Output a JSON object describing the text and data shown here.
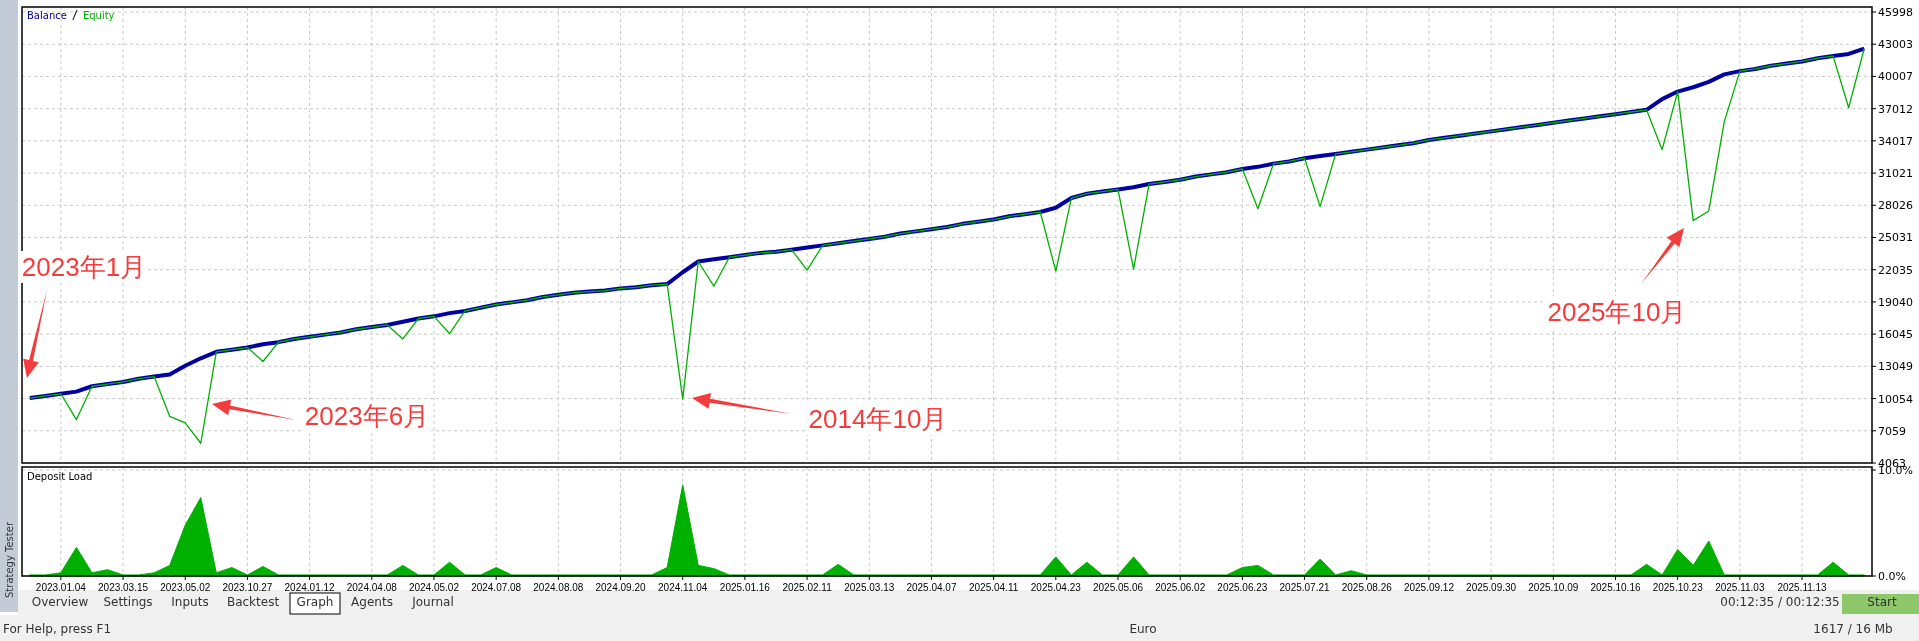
{
  "chart_data": [
    {
      "type": "line",
      "legend": "top left",
      "grid": true,
      "tick_labels": "y",
      "categories": [
        null,
        null,
        "2023.01.04",
        null,
        null,
        null,
        "2023.03.15",
        null,
        null,
        null,
        "2023.05.02",
        null,
        null,
        null,
        "2023.10.27",
        null,
        null,
        null,
        "2024.01.12",
        null,
        null,
        null,
        "2024.04.08",
        null,
        null,
        null,
        "2024.05.02",
        null,
        null,
        null,
        "2024.07.08",
        null,
        null,
        null,
        "2024.08.08",
        null,
        null,
        null,
        "2024.09.20",
        null,
        null,
        null,
        "2024.11.04",
        null,
        null,
        null,
        "2025.01.16",
        null,
        null,
        null,
        "2025.02.11",
        null,
        null,
        null,
        "2025.03.13",
        null,
        null,
        null,
        "2025.04.07",
        null,
        null,
        null,
        "2025.04.11",
        null,
        null,
        null,
        "2025.04.23",
        null,
        null,
        null,
        "2025.05.06",
        null,
        null,
        null,
        "2025.06.02",
        null,
        null,
        null,
        "2025.06.23",
        null,
        null,
        null,
        "2025.07.21",
        null,
        null,
        null,
        "2025.08.26",
        null,
        null,
        null,
        "2025.09.12",
        null,
        null,
        null,
        "2025.09.30",
        null,
        null,
        null,
        "2025.10.09",
        null,
        null,
        null,
        "2025.10.16",
        null,
        null,
        null,
        "2025.10.23",
        null,
        null,
        null,
        "2025.11.03",
        null,
        null,
        null,
        "2025.11.13",
        null,
        null,
        null,
        null
      ],
      "series": [
        {
          "name": "Balance",
          "color": "#0000a0",
          "values": [
            10100,
            10300,
            10500,
            10700,
            11200,
            11400,
            11600,
            11900,
            12100,
            12300,
            13100,
            13800,
            14400,
            14600,
            14800,
            15100,
            15300,
            15600,
            15800,
            16000,
            16200,
            16500,
            16700,
            16900,
            17200,
            17500,
            17700,
            18000,
            18200,
            18500,
            18800,
            19000,
            19200,
            19500,
            19700,
            19900,
            20000,
            20100,
            20300,
            20400,
            20600,
            20700,
            21800,
            22800,
            23000,
            23200,
            23400,
            23600,
            23700,
            23900,
            24100,
            24300,
            24500,
            24700,
            24900,
            25100,
            25400,
            25600,
            25800,
            26000,
            26300,
            26500,
            26700,
            27000,
            27200,
            27400,
            27800,
            28700,
            29100,
            29300,
            29500,
            29700,
            30000,
            30200,
            30400,
            30700,
            30900,
            31100,
            31400,
            31600,
            31900,
            32100,
            32400,
            32600,
            32800,
            33000,
            33200,
            33400,
            33600,
            33800,
            34100,
            34300,
            34500,
            34700,
            34900,
            35100,
            35300,
            35500,
            35700,
            35900,
            36100,
            36300,
            36500,
            36700,
            36900,
            37900,
            38600,
            39000,
            39500,
            40200,
            40500,
            40700,
            41000,
            41200,
            41400,
            41700,
            41900,
            42100,
            42600
          ]
        },
        {
          "name": "Equity",
          "color": "#00b000",
          "values": [
            10100,
            10300,
            10500,
            8100,
            11200,
            11400,
            11600,
            11900,
            12100,
            8400,
            7800,
            5900,
            14400,
            14600,
            14800,
            13500,
            15300,
            15600,
            15800,
            16000,
            16200,
            16500,
            16700,
            16900,
            15600,
            17500,
            17700,
            16100,
            18200,
            18500,
            18800,
            19000,
            19200,
            19500,
            19700,
            19900,
            20000,
            20100,
            20300,
            20400,
            20600,
            20700,
            10000,
            22800,
            20500,
            23200,
            23400,
            23600,
            23700,
            23900,
            22000,
            24300,
            24500,
            24700,
            24900,
            25100,
            25400,
            25600,
            25800,
            26000,
            26300,
            26500,
            26700,
            27000,
            27200,
            27400,
            21900,
            28700,
            29100,
            29300,
            29500,
            22100,
            30000,
            30200,
            30400,
            30700,
            30900,
            31100,
            31400,
            27700,
            31900,
            32100,
            32400,
            27900,
            32800,
            33000,
            33200,
            33400,
            33600,
            33800,
            34100,
            34300,
            34500,
            34700,
            34900,
            35100,
            35300,
            35500,
            35700,
            35900,
            36100,
            36300,
            36500,
            36700,
            36900,
            33200,
            38600,
            26600,
            27500,
            35800,
            40500,
            40700,
            41000,
            41200,
            41400,
            41700,
            41900,
            37100,
            42600
          ]
        }
      ],
      "ylim": [
        4063,
        45998
      ],
      "yticks": [
        4063,
        7059,
        10054,
        13049,
        16045,
        19040,
        22035,
        25031,
        28026,
        31021,
        34017,
        37012,
        40007,
        43003,
        45998
      ],
      "annotations": [
        "2023年1月",
        "2023年6月",
        "2014年10月",
        "2025年10月"
      ]
    },
    {
      "type": "area",
      "title": "Deposit Load",
      "color": "#00b000",
      "grid": true,
      "categories": [
        null,
        null,
        "2023.01.04",
        null,
        null,
        null,
        "2023.03.15",
        null,
        null,
        null,
        "2023.05.02",
        null,
        null,
        null,
        "2023.10.27",
        null,
        null,
        null,
        "2024.01.12",
        null,
        null,
        null,
        "2024.04.08",
        null,
        null,
        null,
        "2024.05.02",
        null,
        null,
        null,
        "2024.07.08",
        null,
        null,
        null,
        "2024.08.08",
        null,
        null,
        null,
        "2024.09.20",
        null,
        null,
        null,
        "2024.11.04",
        null,
        null,
        null,
        "2025.01.16",
        null,
        null,
        null,
        "2025.02.11",
        null,
        null,
        null,
        "2025.03.13",
        null,
        null,
        null,
        "2025.04.07",
        null,
        null,
        null,
        "2025.04.11",
        null,
        null,
        null,
        "2025.04.23",
        null,
        null,
        null,
        "2025.05.06",
        null,
        null,
        null,
        "2025.06.02",
        null,
        null,
        null,
        "2025.06.23",
        null,
        null,
        null,
        "2025.07.21",
        null,
        null,
        null,
        "2025.08.26",
        null,
        null,
        null,
        "2025.09.12",
        null,
        null,
        null,
        "2025.09.30",
        null,
        null,
        null,
        "2025.10.09",
        null,
        null,
        null,
        "2025.10.16",
        null,
        null,
        null,
        "2025.10.23",
        null,
        null,
        null,
        "2025.11.03",
        null,
        null,
        null,
        "2025.11.13",
        null,
        null,
        null,
        null
      ],
      "values": [
        0.1,
        0.1,
        0.3,
        2.7,
        0.3,
        0.6,
        0.1,
        0.1,
        0.3,
        1.0,
        4.8,
        7.4,
        0.3,
        0.8,
        0.1,
        0.9,
        0.1,
        0.1,
        0.1,
        0.1,
        0.1,
        0.1,
        0.1,
        0.1,
        1.0,
        0.1,
        0.1,
        1.3,
        0.1,
        0.1,
        0.8,
        0.1,
        0.1,
        0.1,
        0.1,
        0.1,
        0.1,
        0.1,
        0.1,
        0.1,
        0.1,
        0.8,
        8.6,
        1.0,
        0.7,
        0.1,
        0.1,
        0.1,
        0.1,
        0.1,
        0.1,
        0.1,
        1.1,
        0.1,
        0.1,
        0.1,
        0.1,
        0.1,
        0.1,
        0.1,
        0.1,
        0.1,
        0.1,
        0.1,
        0.1,
        0.1,
        1.8,
        0.1,
        1.3,
        0.1,
        0.1,
        1.8,
        0.1,
        0.1,
        0.1,
        0.1,
        0.1,
        0.1,
        0.8,
        1.0,
        0.1,
        0.1,
        0.1,
        1.6,
        0.1,
        0.5,
        0.1,
        0.1,
        0.1,
        0.1,
        0.1,
        0.1,
        0.1,
        0.1,
        0.1,
        0.1,
        0.1,
        0.1,
        0.1,
        0.1,
        0.1,
        0.1,
        0.1,
        0.1,
        1.1,
        0.1,
        2.5,
        1.0,
        3.3,
        0.1,
        0.1,
        0.1,
        0.1,
        0.1,
        0.1,
        0.1,
        1.3,
        0.1,
        0.1
      ],
      "ylim": [
        0,
        10
      ],
      "yticks": [
        {
          "value": 0,
          "label": "0.0%"
        },
        {
          "value": 10,
          "label": "10.0%"
        }
      ],
      "annotations": [
        "Strategy Tester",
        "Overview",
        "Settings",
        "Inputs",
        "Backtest",
        "Graph",
        "Agents",
        "Journal",
        "For Help, press F1",
        "00:12:35 / 00:12:35",
        "Start",
        "Euro",
        "1617 / 16 Mb"
      ]
    }
  ]
}
